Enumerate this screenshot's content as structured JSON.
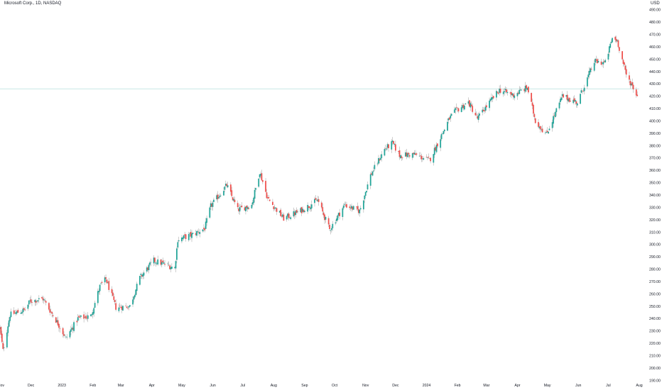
{
  "header": {
    "title": "Microsoft Corp., 1D, NASDAQ",
    "currency": "USD"
  },
  "colors": {
    "up": "#26a69a",
    "down": "#ef5350",
    "wick": "#8a8a8a",
    "last_price_line": "#26a69a",
    "axis_text": "#131722",
    "background": "#ffffff"
  },
  "chart_data": {
    "type": "candlestick",
    "title": "Microsoft Corp., 1D, NASDAQ",
    "ylabel": "USD",
    "ylim": [
      185,
      495
    ],
    "y_ticks": [
      190,
      200,
      210,
      220,
      230,
      240,
      250,
      260,
      270,
      280,
      290,
      300,
      310,
      320,
      330,
      340,
      350,
      360,
      370,
      380,
      390,
      400,
      410,
      420,
      430,
      440,
      450,
      460,
      470,
      480,
      490
    ],
    "y_tick_labels": [
      "190.00",
      "200.00",
      "210.00",
      "220.00",
      "230.00",
      "240.00",
      "250.00",
      "260.00",
      "270.00",
      "280.00",
      "290.00",
      "300.00",
      "310.00",
      "320.00",
      "330.00",
      "340.00",
      "350.00",
      "360.00",
      "370.00",
      "380.00",
      "390.00",
      "400.00",
      "410.00",
      "420.00",
      "430.00",
      "440.00",
      "450.00",
      "460.00",
      "470.00",
      "480.00",
      "490.00"
    ],
    "xlim": [
      "2022-10-31",
      "2024-08-01"
    ],
    "x_ticks": [
      {
        "date": "2022-11-01",
        "label": "Nov"
      },
      {
        "date": "2022-12-01",
        "label": "Dec"
      },
      {
        "date": "2023-01-01",
        "label": "2023"
      },
      {
        "date": "2023-02-01",
        "label": "Feb"
      },
      {
        "date": "2023-03-01",
        "label": "Mar"
      },
      {
        "date": "2023-04-01",
        "label": "Apr"
      },
      {
        "date": "2023-05-01",
        "label": "May"
      },
      {
        "date": "2023-06-01",
        "label": "Jun"
      },
      {
        "date": "2023-07-01",
        "label": "Jul"
      },
      {
        "date": "2023-08-01",
        "label": "Aug"
      },
      {
        "date": "2023-09-01",
        "label": "Sep"
      },
      {
        "date": "2023-10-01",
        "label": "Oct"
      },
      {
        "date": "2023-11-01",
        "label": "Nov"
      },
      {
        "date": "2023-12-01",
        "label": "Dec"
      },
      {
        "date": "2024-01-01",
        "label": "2024"
      },
      {
        "date": "2024-02-01",
        "label": "Feb"
      },
      {
        "date": "2024-03-01",
        "label": "Mar"
      },
      {
        "date": "2024-04-01",
        "label": "Apr"
      },
      {
        "date": "2024-05-01",
        "label": "May"
      },
      {
        "date": "2024-06-01",
        "label": "Jun"
      },
      {
        "date": "2024-07-01",
        "label": "Jul"
      },
      {
        "date": "2024-08-01",
        "label": "Aug"
      }
    ],
    "last_price": 426,
    "grid": false,
    "close_anchors": [
      {
        "date": "2022-10-31",
        "close": 232
      },
      {
        "date": "2022-11-03",
        "close": 214
      },
      {
        "date": "2022-11-10",
        "close": 243
      },
      {
        "date": "2022-11-25",
        "close": 247
      },
      {
        "date": "2022-11-30",
        "close": 254
      },
      {
        "date": "2022-12-13",
        "close": 256
      },
      {
        "date": "2022-12-28",
        "close": 236
      },
      {
        "date": "2023-01-05",
        "close": 224
      },
      {
        "date": "2023-01-17",
        "close": 240
      },
      {
        "date": "2023-01-30",
        "close": 242
      },
      {
        "date": "2023-02-08",
        "close": 266
      },
      {
        "date": "2023-02-14",
        "close": 272
      },
      {
        "date": "2023-02-24",
        "close": 249
      },
      {
        "date": "2023-03-10",
        "close": 250
      },
      {
        "date": "2023-03-20",
        "close": 273
      },
      {
        "date": "2023-04-03",
        "close": 287
      },
      {
        "date": "2023-04-24",
        "close": 281
      },
      {
        "date": "2023-04-27",
        "close": 304
      },
      {
        "date": "2023-05-12",
        "close": 308
      },
      {
        "date": "2023-05-24",
        "close": 313
      },
      {
        "date": "2023-05-30",
        "close": 331
      },
      {
        "date": "2023-06-15",
        "close": 348
      },
      {
        "date": "2023-06-26",
        "close": 328
      },
      {
        "date": "2023-07-10",
        "close": 332
      },
      {
        "date": "2023-07-18",
        "close": 359
      },
      {
        "date": "2023-07-26",
        "close": 337
      },
      {
        "date": "2023-08-11",
        "close": 321
      },
      {
        "date": "2023-08-30",
        "close": 328
      },
      {
        "date": "2023-09-14",
        "close": 336
      },
      {
        "date": "2023-09-26",
        "close": 312
      },
      {
        "date": "2023-10-11",
        "close": 332
      },
      {
        "date": "2023-10-26",
        "close": 327
      },
      {
        "date": "2023-11-06",
        "close": 356
      },
      {
        "date": "2023-11-20",
        "close": 377
      },
      {
        "date": "2023-11-28",
        "close": 382
      },
      {
        "date": "2023-12-05",
        "close": 372
      },
      {
        "date": "2023-12-19",
        "close": 373
      },
      {
        "date": "2024-01-04",
        "close": 368
      },
      {
        "date": "2024-01-24",
        "close": 402
      },
      {
        "date": "2024-01-30",
        "close": 408
      },
      {
        "date": "2024-02-12",
        "close": 415
      },
      {
        "date": "2024-02-21",
        "close": 402
      },
      {
        "date": "2024-03-04",
        "close": 415
      },
      {
        "date": "2024-03-14",
        "close": 425
      },
      {
        "date": "2024-03-28",
        "close": 421
      },
      {
        "date": "2024-04-11",
        "close": 427
      },
      {
        "date": "2024-04-19",
        "close": 400
      },
      {
        "date": "2024-04-30",
        "close": 389
      },
      {
        "date": "2024-05-16",
        "close": 420
      },
      {
        "date": "2024-05-31",
        "close": 415
      },
      {
        "date": "2024-06-17",
        "close": 448
      },
      {
        "date": "2024-06-28",
        "close": 447
      },
      {
        "date": "2024-07-05",
        "close": 467
      },
      {
        "date": "2024-07-10",
        "close": 465
      },
      {
        "date": "2024-07-19",
        "close": 437
      },
      {
        "date": "2024-07-26",
        "close": 427
      },
      {
        "date": "2024-07-30",
        "close": 420
      }
    ]
  }
}
